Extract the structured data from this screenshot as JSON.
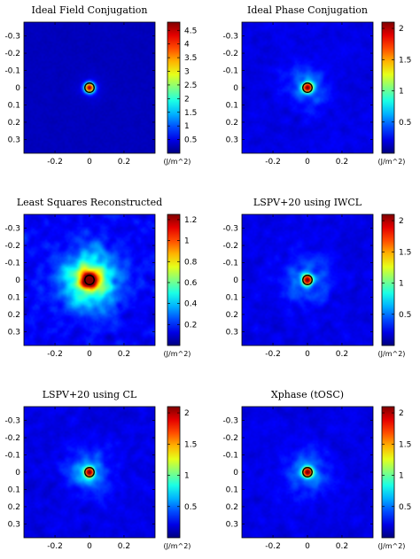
{
  "chart_data": [
    {
      "type": "heatmap",
      "title": "Ideal Field Conjugation",
      "colorbar_unit": "(J/m^2)",
      "colormap": "jet",
      "x_ticks": [
        "-0.2",
        "0",
        "0.2"
      ],
      "y_ticks": [
        "-0.3",
        "-0.2",
        "-0.1",
        "0",
        "0.1",
        "0.2",
        "0.3"
      ],
      "xlim": [
        -0.38,
        0.38
      ],
      "ylim": [
        -0.38,
        0.38
      ],
      "y_reversed": true,
      "colorbar_ticks": [
        "0.5",
        "1",
        "1.5",
        "2",
        "2.5",
        "3",
        "3.5",
        "4",
        "4.5"
      ],
      "colorbar_range": [
        0,
        4.8
      ],
      "peak_value": 4.8,
      "core_width": 0.02,
      "halo_width": 0.05,
      "halo_level": 0.05,
      "noise_level": 0.02,
      "background_level": 0.06,
      "circle_radius": 0.027
    },
    {
      "type": "heatmap",
      "title": "Ideal Phase Conjugation",
      "colorbar_unit": "(J/m^2)",
      "colormap": "jet",
      "x_ticks": [
        "-0.2",
        "0",
        "0.2"
      ],
      "y_ticks": [
        "-0.3",
        "-0.2",
        "-0.1",
        "0",
        "0.1",
        "0.2",
        "0.3"
      ],
      "xlim": [
        -0.38,
        0.38
      ],
      "ylim": [
        -0.38,
        0.38
      ],
      "y_reversed": true,
      "colorbar_ticks": [
        "0.5",
        "1",
        "1.5",
        "2"
      ],
      "colorbar_range": [
        0,
        2.1
      ],
      "peak_value": 2.1,
      "core_width": 0.02,
      "halo_width": 0.085,
      "halo_level": 0.13,
      "noise_level": 0.07,
      "background_level": 0.1,
      "circle_radius": 0.027
    },
    {
      "type": "heatmap",
      "title": "Least Squares Reconstructed",
      "colorbar_unit": "(J/m^2)",
      "colormap": "jet",
      "x_ticks": [
        "-0.2",
        "0",
        "0.2"
      ],
      "y_ticks": [
        "-0.3",
        "-0.2",
        "-0.1",
        "0",
        "0.1",
        "0.2",
        "0.3"
      ],
      "xlim": [
        -0.38,
        0.38
      ],
      "ylim": [
        -0.38,
        0.38
      ],
      "y_reversed": true,
      "colorbar_ticks": [
        "0.2",
        "0.4",
        "0.6",
        "0.8",
        "1",
        "1.2"
      ],
      "colorbar_range": [
        0,
        1.25
      ],
      "peak_value": 1.25,
      "core_width": 0.03,
      "halo_width": 0.11,
      "halo_level": 0.45,
      "noise_level": 0.16,
      "background_level": 0.12,
      "circle_radius": 0.027
    },
    {
      "type": "heatmap",
      "title": "LSPV+20 using IWCL",
      "colorbar_unit": "(J/m^2)",
      "colormap": "jet",
      "x_ticks": [
        "-0.2",
        "0",
        "0.2"
      ],
      "y_ticks": [
        "-0.3",
        "-0.2",
        "-0.1",
        "0",
        "0.1",
        "0.2",
        "0.3"
      ],
      "xlim": [
        -0.38,
        0.38
      ],
      "ylim": [
        -0.38,
        0.38
      ],
      "y_reversed": true,
      "colorbar_ticks": [
        "0.5",
        "1",
        "1.5",
        "2"
      ],
      "colorbar_range": [
        0,
        2.1
      ],
      "peak_value": 2.1,
      "core_width": 0.02,
      "halo_width": 0.09,
      "halo_level": 0.14,
      "noise_level": 0.08,
      "background_level": 0.1,
      "circle_radius": 0.027
    },
    {
      "type": "heatmap",
      "title": "LSPV+20 using CL",
      "colorbar_unit": "(J/m^2)",
      "colormap": "jet",
      "x_ticks": [
        "-0.2",
        "0",
        "0.2"
      ],
      "y_ticks": [
        "-0.3",
        "-0.2",
        "-0.1",
        "0",
        "0.1",
        "0.2",
        "0.3"
      ],
      "xlim": [
        -0.38,
        0.38
      ],
      "ylim": [
        -0.38,
        0.38
      ],
      "y_reversed": true,
      "colorbar_ticks": [
        "0.5",
        "1",
        "1.5",
        "2"
      ],
      "colorbar_range": [
        0,
        2.1
      ],
      "peak_value": 2.1,
      "core_width": 0.02,
      "halo_width": 0.09,
      "halo_level": 0.14,
      "noise_level": 0.08,
      "background_level": 0.1,
      "circle_radius": 0.027
    },
    {
      "type": "heatmap",
      "title": "Xphase (tOSC)",
      "colorbar_unit": "(J/m^2)",
      "colormap": "jet",
      "x_ticks": [
        "-0.2",
        "0",
        "0.2"
      ],
      "y_ticks": [
        "-0.3",
        "-0.2",
        "-0.1",
        "0",
        "0.1",
        "0.2",
        "0.3"
      ],
      "xlim": [
        -0.38,
        0.38
      ],
      "ylim": [
        -0.38,
        0.38
      ],
      "y_reversed": true,
      "colorbar_ticks": [
        "0.5",
        "1",
        "1.5",
        "2"
      ],
      "colorbar_range": [
        0,
        2.1
      ],
      "peak_value": 2.1,
      "core_width": 0.02,
      "halo_width": 0.09,
      "halo_level": 0.14,
      "noise_level": 0.08,
      "background_level": 0.1,
      "circle_radius": 0.027
    }
  ]
}
